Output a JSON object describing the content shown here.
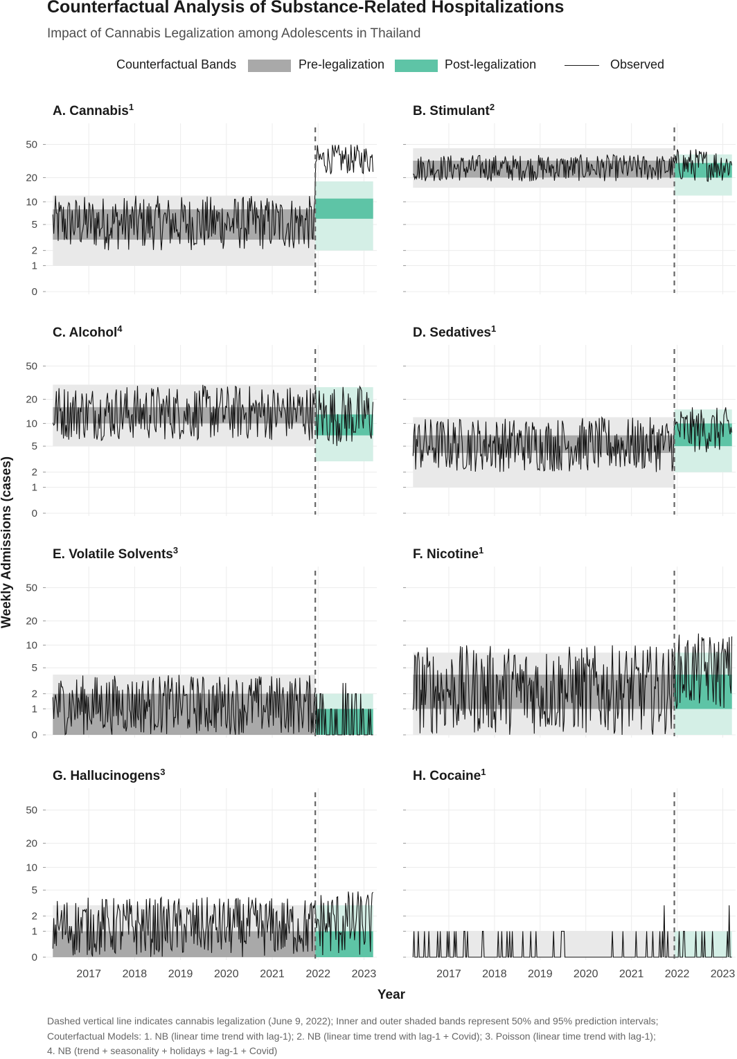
{
  "title": "Counterfactual Analysis of Substance-Related Hospitalizations",
  "subtitle": "Impact of Cannabis Legalization among Adolescents in Thailand",
  "legend": {
    "title": "Counterfactual Bands",
    "pre_label": "Pre-legalization",
    "post_label": "Post-legalization",
    "observed_label": "Observed"
  },
  "colors": {
    "pre_inner": "#a9a9a9",
    "pre_outer": "#e9e9e9",
    "post_inner": "#5ec4a6",
    "post_outer": "#d4efe6",
    "observed": "#111111",
    "grid": "#ececec",
    "legalization_line": "#666666"
  },
  "y_axis_label": "Weekly Admissions (cases)",
  "x_axis_label": "Year",
  "footnotes": [
    "Dashed vertical line indicates cannabis legalization (June 9, 2022); Inner and outer shaded bands represent 50% and 95% prediction intervals;",
    "Couterfactual Models: 1. NB (linear time trend with lag-1); 2. NB (linear time trend with lag-1 + Covid); 3. Poisson (linear time trend with lag-1);",
    "4. NB (trend + seasonality + holidays + lag-1 + Covid)"
  ],
  "chart_data": [
    {
      "type": "line",
      "panel": "A",
      "title": "A. Cannabis",
      "superscript": "1",
      "x_ticks": [
        "2017",
        "2018",
        "2019",
        "2020",
        "2021",
        "2022",
        "2023"
      ],
      "x_range": [
        "2016-09",
        "2023-10"
      ],
      "legalization_date": "2022-06-09",
      "y_ticks": [
        0,
        1,
        2,
        5,
        10,
        20,
        50
      ],
      "y_scale": "log1p",
      "grid": true,
      "observed_level": {
        "pre": [
          2,
          12
        ],
        "post": [
          22,
          50
        ]
      },
      "pre_inner": [
        3,
        8
      ],
      "pre_outer": [
        1,
        12
      ],
      "post_inner": [
        6,
        11
      ],
      "post_outer": [
        2,
        18
      ]
    },
    {
      "type": "line",
      "panel": "B",
      "title": "B. Stimulant",
      "superscript": "2",
      "x_ticks": [
        "2017",
        "2018",
        "2019",
        "2020",
        "2021",
        "2022",
        "2023"
      ],
      "x_range": [
        "2016-09",
        "2023-10"
      ],
      "legalization_date": "2022-06-09",
      "y_ticks": [
        0,
        1,
        2,
        5,
        10,
        20,
        50
      ],
      "y_scale": "log1p",
      "grid": true,
      "observed_level": {
        "pre": [
          18,
          38
        ],
        "post": [
          18,
          45
        ]
      },
      "pre_inner": [
        20,
        32
      ],
      "pre_outer": [
        15,
        45
      ],
      "post_inner": [
        20,
        30
      ],
      "post_outer": [
        12,
        38
      ]
    },
    {
      "type": "line",
      "panel": "C",
      "title": "C. Alcohol",
      "superscript": "4",
      "x_ticks": [
        "2017",
        "2018",
        "2019",
        "2020",
        "2021",
        "2022",
        "2023"
      ],
      "x_range": [
        "2016-09",
        "2023-10"
      ],
      "legalization_date": "2022-06-09",
      "y_ticks": [
        0,
        1,
        2,
        5,
        10,
        20,
        50
      ],
      "y_scale": "log1p",
      "grid": true,
      "observed_level": {
        "pre": [
          6,
          30
        ],
        "post": [
          5,
          30
        ]
      },
      "pre_inner": [
        10,
        16
      ],
      "pre_outer": [
        5,
        30
      ],
      "post_inner": [
        7,
        13
      ],
      "post_outer": [
        3,
        28
      ]
    },
    {
      "type": "line",
      "panel": "D",
      "title": "D. Sedatives",
      "superscript": "1",
      "x_ticks": [
        "2017",
        "2018",
        "2019",
        "2020",
        "2021",
        "2022",
        "2023"
      ],
      "x_range": [
        "2016-09",
        "2023-10"
      ],
      "legalization_date": "2022-06-09",
      "y_ticks": [
        0,
        1,
        2,
        5,
        10,
        20,
        50
      ],
      "y_scale": "log1p",
      "grid": true,
      "observed_level": {
        "pre": [
          2,
          12
        ],
        "post": [
          4,
          16
        ]
      },
      "pre_inner": [
        4,
        7
      ],
      "pre_outer": [
        1,
        12
      ],
      "post_inner": [
        5,
        10
      ],
      "post_outer": [
        2,
        15
      ]
    },
    {
      "type": "line",
      "panel": "E",
      "title": "E. Volatile Solvents",
      "superscript": "3",
      "x_ticks": [
        "2017",
        "2018",
        "2019",
        "2020",
        "2021",
        "2022",
        "2023"
      ],
      "x_range": [
        "2016-09",
        "2023-10"
      ],
      "legalization_date": "2022-06-09",
      "y_ticks": [
        0,
        1,
        2,
        5,
        10,
        20,
        50
      ],
      "y_scale": "log1p",
      "grid": true,
      "observed_level": {
        "pre": [
          0,
          4
        ],
        "post": [
          0,
          3
        ]
      },
      "pre_inner": [
        0,
        2
      ],
      "pre_outer": [
        0,
        4
      ],
      "post_inner": [
        0,
        1
      ],
      "post_outer": [
        0,
        2
      ]
    },
    {
      "type": "line",
      "panel": "F",
      "title": "F. Nicotine",
      "superscript": "1",
      "x_ticks": [
        "2017",
        "2018",
        "2019",
        "2020",
        "2021",
        "2022",
        "2023"
      ],
      "x_range": [
        "2016-09",
        "2023-10"
      ],
      "legalization_date": "2022-06-09",
      "y_ticks": [
        0,
        1,
        2,
        5,
        10,
        20,
        50
      ],
      "y_scale": "log1p",
      "grid": true,
      "observed_level": {
        "pre": [
          0,
          10
        ],
        "post": [
          1,
          14
        ]
      },
      "pre_inner": [
        1,
        4
      ],
      "pre_outer": [
        0,
        8
      ],
      "post_inner": [
        1,
        4
      ],
      "post_outer": [
        0,
        8
      ]
    },
    {
      "type": "line",
      "panel": "G",
      "title": "G. Hallucinogens",
      "superscript": "3",
      "x_ticks": [
        "2017",
        "2018",
        "2019",
        "2020",
        "2021",
        "2022",
        "2023"
      ],
      "x_range": [
        "2016-09",
        "2023-10"
      ],
      "legalization_date": "2022-06-09",
      "y_ticks": [
        0,
        1,
        2,
        5,
        10,
        20,
        50
      ],
      "y_scale": "log1p",
      "grid": true,
      "observed_level": {
        "pre": [
          0,
          4
        ],
        "post": [
          0,
          5
        ]
      },
      "pre_inner": [
        0,
        1
      ],
      "pre_outer": [
        0,
        3
      ],
      "post_inner": [
        0,
        1
      ],
      "post_outer": [
        0,
        3
      ]
    },
    {
      "type": "line",
      "panel": "H",
      "title": "H. Cocaine",
      "superscript": "1",
      "x_ticks": [
        "2017",
        "2018",
        "2019",
        "2020",
        "2021",
        "2022",
        "2023"
      ],
      "x_range": [
        "2016-09",
        "2023-10"
      ],
      "legalization_date": "2022-06-09",
      "y_ticks": [
        0,
        1,
        2,
        5,
        10,
        20,
        50
      ],
      "y_scale": "log1p",
      "grid": true,
      "observed_level": {
        "pre": [
          0,
          3
        ],
        "post": [
          0,
          1
        ]
      },
      "pre_inner": [
        0,
        0
      ],
      "pre_outer": [
        0,
        1
      ],
      "post_inner": [
        0,
        0
      ],
      "post_outer": [
        0,
        1
      ]
    }
  ]
}
